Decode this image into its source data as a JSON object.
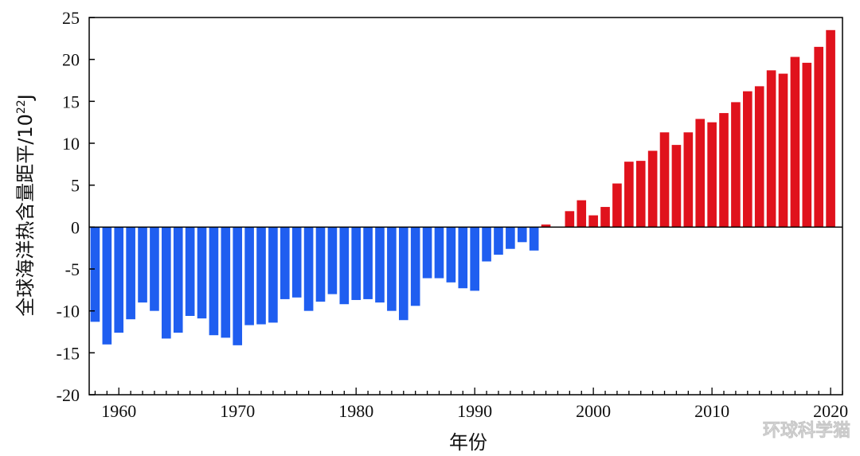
{
  "chart_data": {
    "type": "bar",
    "title": "",
    "xlabel": "年份",
    "ylabel": "全球海洋热含量距平/10²²J",
    "ylabel_main": "全球海洋热含量距平/10",
    "ylabel_sup": "22",
    "ylabel_unit": "J",
    "ylim": [
      -20,
      25
    ],
    "yticks": [
      25,
      20,
      15,
      10,
      5,
      0,
      -5,
      -10,
      -15,
      -20
    ],
    "xlim": [
      1957.5,
      2021
    ],
    "xticks": [
      1960,
      1970,
      1980,
      1990,
      2000,
      2010,
      2020
    ],
    "grid": false,
    "colors": {
      "negative": "#1f5ef0",
      "positive": "#e0121c",
      "axis": "#000000"
    },
    "x": [
      1958,
      1959,
      1960,
      1961,
      1962,
      1963,
      1964,
      1965,
      1966,
      1967,
      1968,
      1969,
      1970,
      1971,
      1972,
      1973,
      1974,
      1975,
      1976,
      1977,
      1978,
      1979,
      1980,
      1981,
      1982,
      1983,
      1984,
      1985,
      1986,
      1987,
      1988,
      1989,
      1990,
      1991,
      1992,
      1993,
      1994,
      1995,
      1996,
      1997,
      1998,
      1999,
      2000,
      2001,
      2002,
      2003,
      2004,
      2005,
      2006,
      2007,
      2008,
      2009,
      2010,
      2011,
      2012,
      2013,
      2014,
      2015,
      2016,
      2017,
      2018,
      2019,
      2020
    ],
    "values": [
      -11.3,
      -14.0,
      -12.6,
      -11.0,
      -9.0,
      -10.0,
      -13.3,
      -12.6,
      -10.6,
      -10.9,
      -12.9,
      -13.2,
      -14.1,
      -11.7,
      -11.6,
      -11.4,
      -8.6,
      -8.4,
      -10.0,
      -8.9,
      -8.0,
      -9.2,
      -8.7,
      -8.6,
      -9.0,
      -10.0,
      -11.1,
      -9.4,
      -6.1,
      -6.1,
      -6.6,
      -7.3,
      -7.6,
      -4.1,
      -3.3,
      -2.6,
      -1.8,
      -2.8,
      0.3,
      0.0,
      1.9,
      3.2,
      1.4,
      2.4,
      5.2,
      7.8,
      7.9,
      9.1,
      11.3,
      9.8,
      11.3,
      12.9,
      12.5,
      13.6,
      14.9,
      16.2,
      16.8,
      18.7,
      18.3,
      20.3,
      19.6,
      21.5,
      23.5
    ]
  },
  "watermark": "环球科学猫"
}
